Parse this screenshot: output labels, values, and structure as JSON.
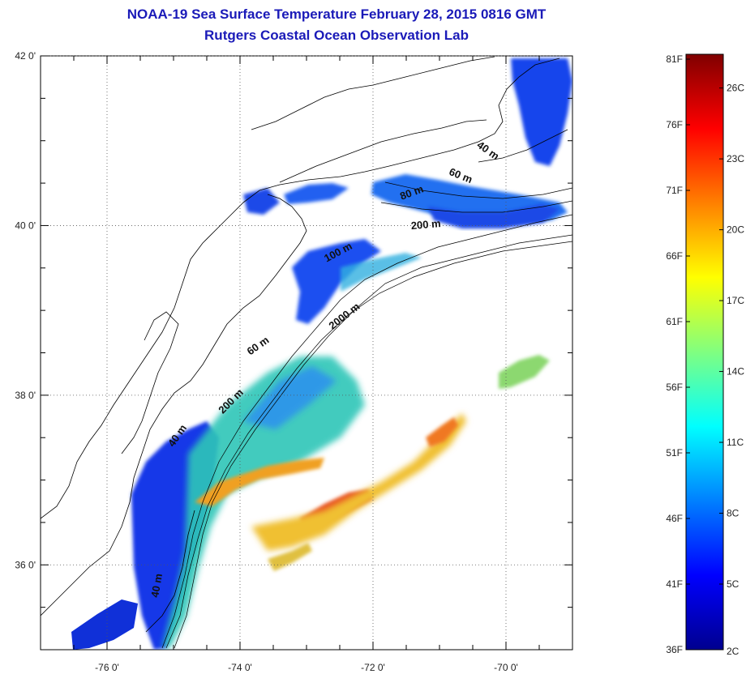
{
  "header": {
    "title_line1": "NOAA-19 Sea Surface Temperature February 28, 2015 0816 GMT",
    "title_line2": "Rutgers Coastal Ocean Observation Lab"
  },
  "map": {
    "lon_range": [
      -77,
      -69
    ],
    "lat_range": [
      35,
      42
    ],
    "lon_ticks": [
      {
        "value": -76,
        "label": "-76 0'"
      },
      {
        "value": -74,
        "label": "-74 0'"
      },
      {
        "value": -72,
        "label": "-72 0'"
      },
      {
        "value": -70,
        "label": "-70 0'"
      }
    ],
    "lat_ticks": [
      {
        "value": 42,
        "label": "42 0'"
      },
      {
        "value": 40,
        "label": "40 0'"
      },
      {
        "value": 38,
        "label": "38 0'"
      },
      {
        "value": 36,
        "label": "36 0'"
      }
    ],
    "grid": "dotted",
    "contour_labels": [
      {
        "text": "40 m",
        "lon": -70.3,
        "lat": 40.85,
        "angle": 35
      },
      {
        "text": "60 m",
        "lon": -70.7,
        "lat": 40.55,
        "angle": 22
      },
      {
        "text": "80 m",
        "lon": -71.4,
        "lat": 40.35,
        "angle": -20
      },
      {
        "text": "200 m",
        "lon": -71.2,
        "lat": 39.97,
        "angle": -5
      },
      {
        "text": "100 m",
        "lon": -72.5,
        "lat": 39.65,
        "angle": -28
      },
      {
        "text": "2000 m",
        "lon": -72.4,
        "lat": 38.9,
        "angle": -38
      },
      {
        "text": "60 m",
        "lon": -73.7,
        "lat": 38.55,
        "angle": -35
      },
      {
        "text": "200 m",
        "lon": -74.1,
        "lat": 37.9,
        "angle": -45
      },
      {
        "text": "40 m",
        "lon": -74.9,
        "lat": 37.5,
        "angle": -55
      },
      {
        "text": "40 m",
        "lon": -75.2,
        "lat": 35.75,
        "angle": -80
      }
    ]
  },
  "colorbar": {
    "colors": [
      "#00008f",
      "#0000ff",
      "#0080ff",
      "#00ffff",
      "#80ff80",
      "#ffff00",
      "#ff8000",
      "#ff0000",
      "#800000"
    ],
    "f_labels": [
      {
        "value": 36,
        "label": "36F"
      },
      {
        "value": 41,
        "label": "41F"
      },
      {
        "value": 46,
        "label": "46F"
      },
      {
        "value": 51,
        "label": "51F"
      },
      {
        "value": 56,
        "label": "56F"
      },
      {
        "value": 61,
        "label": "61F"
      },
      {
        "value": 66,
        "label": "66F"
      },
      {
        "value": 71,
        "label": "71F"
      },
      {
        "value": 76,
        "label": "76F"
      },
      {
        "value": 81,
        "label": "81F"
      }
    ],
    "c_labels": [
      {
        "value": 2,
        "label": "2C"
      },
      {
        "value": 5,
        "label": "5C"
      },
      {
        "value": 8,
        "label": "8C"
      },
      {
        "value": 11,
        "label": "11C"
      },
      {
        "value": 14,
        "label": "14C"
      },
      {
        "value": 17,
        "label": "17C"
      },
      {
        "value": 20,
        "label": "20C"
      },
      {
        "value": 23,
        "label": "23C"
      },
      {
        "value": 26,
        "label": "26C"
      }
    ]
  }
}
